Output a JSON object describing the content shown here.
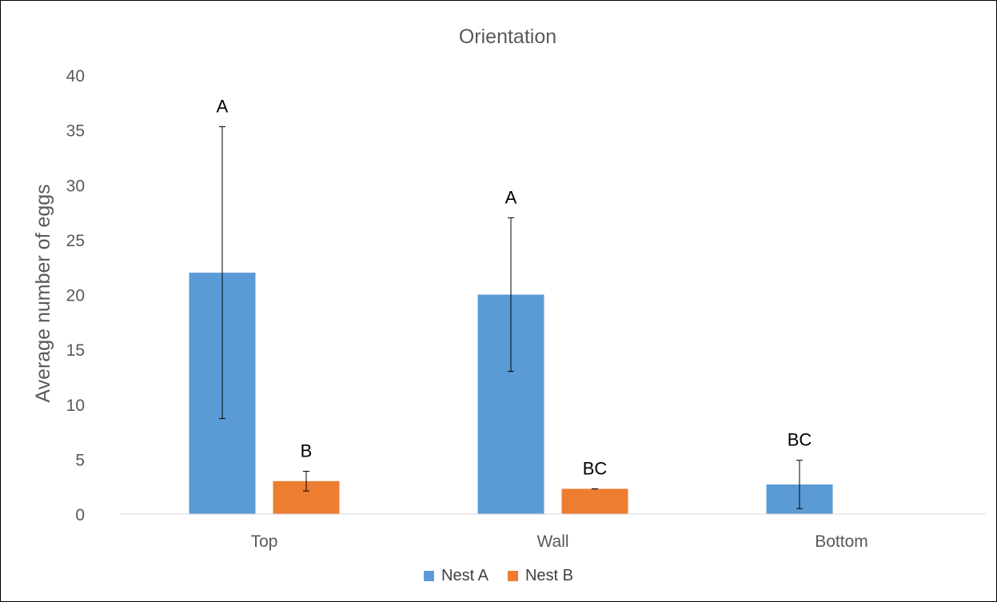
{
  "chart_data": {
    "type": "bar",
    "title": "Orientation",
    "xlabel": "",
    "ylabel": "Average number of eggs",
    "categories": [
      "Top",
      "Wall",
      "Bottom"
    ],
    "ylim": [
      0,
      40
    ],
    "yticks": [
      0,
      5,
      10,
      15,
      20,
      25,
      30,
      35,
      40
    ],
    "grid": false,
    "legend_position": "bottom",
    "series": [
      {
        "name": "Nest A",
        "color": "#5B9BD5",
        "values": [
          22,
          20,
          2.7
        ],
        "error": [
          13.3,
          7,
          2.2
        ],
        "labels": [
          "A",
          "A",
          "BC"
        ]
      },
      {
        "name": "Nest B",
        "color": "#ED7D31",
        "values": [
          3,
          2.3,
          null
        ],
        "error": [
          0.9,
          0,
          null
        ],
        "labels": [
          "B",
          "BC",
          ""
        ]
      }
    ]
  }
}
